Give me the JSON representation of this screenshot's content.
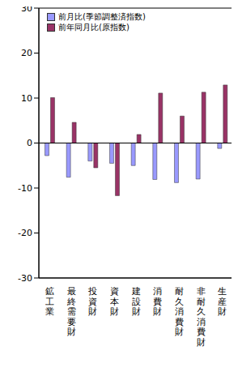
{
  "chart_data": {
    "type": "bar",
    "categories": [
      "鉱工業",
      "最終需要財",
      "投資財",
      "資本財",
      "建設財",
      "消費財",
      "耐久消費財",
      "非耐久消費財",
      "生産財"
    ],
    "series": [
      {
        "name": "前月比(季節調整済指数)",
        "color": "#9999ff",
        "values": [
          -2.8,
          -7.6,
          -4.0,
          -4.5,
          -5.0,
          -8.1,
          -8.8,
          -8.0,
          -1.2
        ]
      },
      {
        "name": "前年同月比(原指数)",
        "color": "#993366",
        "values": [
          10.1,
          4.6,
          -5.5,
          -11.7,
          1.9,
          11.1,
          6.0,
          11.3,
          12.9
        ]
      }
    ],
    "ylim": [
      -30,
      30
    ],
    "yticks": [
      -30,
      -20,
      -10,
      0,
      10,
      20,
      30
    ],
    "grid": false,
    "legend": "upper left"
  }
}
